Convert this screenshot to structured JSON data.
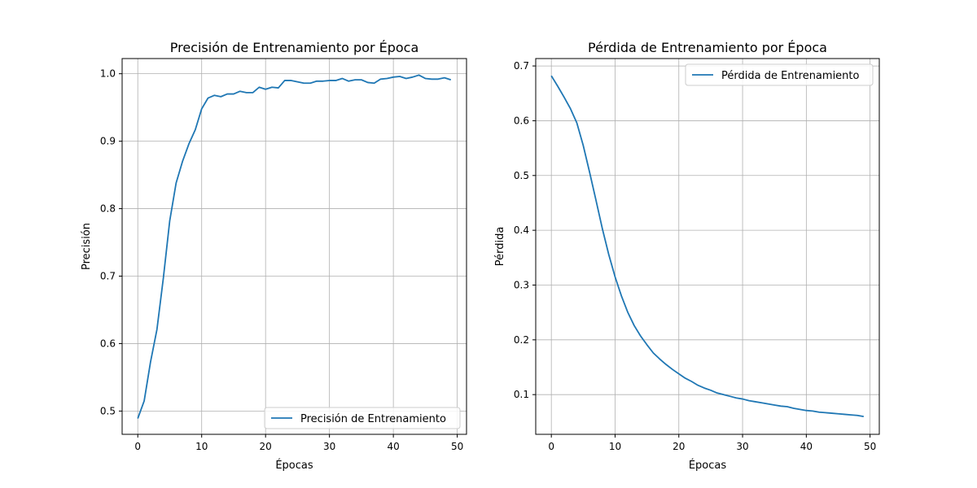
{
  "chart_data": [
    {
      "type": "line",
      "title": "Precisión de Entrenamiento por Época",
      "xlabel": "Épocas",
      "ylabel": "Precisión",
      "xlim": [
        -2.45,
        51.45
      ],
      "ylim": [
        0.4655,
        1.0225
      ],
      "xticks": [
        0,
        10,
        20,
        30,
        40,
        50
      ],
      "yticks": [
        0.5,
        0.6,
        0.7,
        0.8,
        0.9,
        1.0
      ],
      "grid": true,
      "legend_position": "lower-right",
      "color": "#1f77b4",
      "series": [
        {
          "name": "Precisión de Entrenamiento",
          "x": [
            0,
            1,
            2,
            3,
            4,
            5,
            6,
            7,
            8,
            9,
            10,
            11,
            12,
            13,
            14,
            15,
            16,
            17,
            18,
            19,
            20,
            21,
            22,
            23,
            24,
            25,
            26,
            27,
            28,
            29,
            30,
            31,
            32,
            33,
            34,
            35,
            36,
            37,
            38,
            39,
            40,
            41,
            42,
            43,
            44,
            45,
            46,
            47,
            48,
            49
          ],
          "values": [
            0.489,
            0.515,
            0.573,
            0.621,
            0.697,
            0.782,
            0.838,
            0.87,
            0.896,
            0.917,
            0.948,
            0.964,
            0.968,
            0.966,
            0.97,
            0.97,
            0.974,
            0.972,
            0.972,
            0.98,
            0.977,
            0.98,
            0.979,
            0.99,
            0.99,
            0.988,
            0.986,
            0.986,
            0.989,
            0.989,
            0.99,
            0.99,
            0.993,
            0.989,
            0.991,
            0.991,
            0.987,
            0.986,
            0.992,
            0.993,
            0.995,
            0.996,
            0.993,
            0.995,
            0.998,
            0.993,
            0.992,
            0.992,
            0.994,
            0.991
          ]
        }
      ]
    },
    {
      "type": "line",
      "title": "Pérdida de Entrenamiento por Época",
      "xlabel": "Épocas",
      "ylabel": "Pérdida",
      "xlim": [
        -2.45,
        51.45
      ],
      "ylim": [
        0.0275,
        0.7135
      ],
      "xticks": [
        0,
        10,
        20,
        30,
        40,
        50
      ],
      "yticks": [
        0.1,
        0.2,
        0.3,
        0.4,
        0.5,
        0.6,
        0.7
      ],
      "grid": true,
      "legend_position": "top-right",
      "color": "#1f77b4",
      "series": [
        {
          "name": "Pérdida de Entrenamiento",
          "x": [
            0,
            1,
            2,
            3,
            4,
            5,
            6,
            7,
            8,
            9,
            10,
            11,
            12,
            13,
            14,
            15,
            16,
            17,
            18,
            19,
            20,
            21,
            22,
            23,
            24,
            25,
            26,
            27,
            28,
            29,
            30,
            31,
            32,
            33,
            34,
            35,
            36,
            37,
            38,
            39,
            40,
            41,
            42,
            43,
            44,
            45,
            46,
            47,
            48,
            49
          ],
          "values": [
            0.682,
            0.663,
            0.643,
            0.622,
            0.596,
            0.555,
            0.506,
            0.455,
            0.403,
            0.356,
            0.315,
            0.28,
            0.25,
            0.226,
            0.207,
            0.191,
            0.176,
            0.165,
            0.155,
            0.146,
            0.138,
            0.13,
            0.124,
            0.117,
            0.112,
            0.108,
            0.103,
            0.1,
            0.097,
            0.094,
            0.092,
            0.089,
            0.087,
            0.085,
            0.083,
            0.081,
            0.079,
            0.078,
            0.075,
            0.073,
            0.071,
            0.07,
            0.068,
            0.067,
            0.066,
            0.065,
            0.064,
            0.063,
            0.062,
            0.06
          ]
        }
      ]
    }
  ]
}
